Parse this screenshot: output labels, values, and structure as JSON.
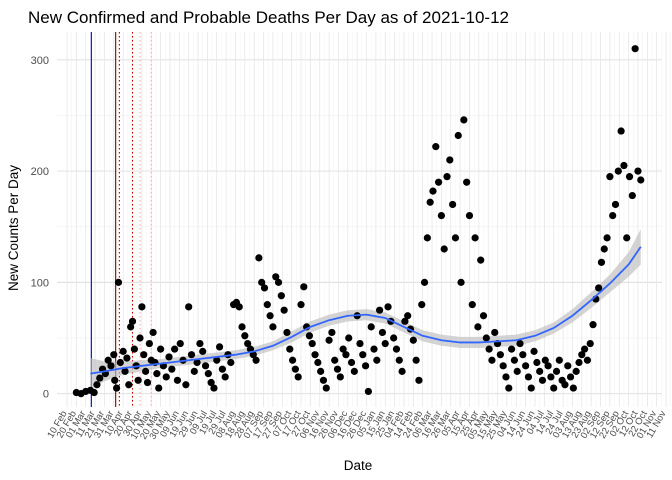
{
  "chart_data": {
    "type": "scatter",
    "title": "New Confirmed and Probable Deaths Per Day as of 2021-10-12",
    "xlabel": "Date",
    "ylabel": "New Counts Per Day",
    "ylim": [
      -12,
      325
    ],
    "y_ticks": [
      0,
      100,
      200,
      300
    ],
    "x_tick_labels": [
      "10 Feb",
      "20 Feb",
      "01 Mar",
      "11 Mar",
      "21 Mar",
      "31 Mar",
      "10 Apr",
      "20 Apr",
      "30 Apr",
      "10 May",
      "20 May",
      "30 May",
      "09 Jun",
      "19 Jun",
      "29 Jun",
      "09 Jul",
      "19 Jul",
      "29 Jul",
      "08 Aug",
      "18 Aug",
      "28 Aug",
      "07 Sep",
      "17 Sep",
      "27 Sep",
      "07 Oct",
      "17 Oct",
      "27 Oct",
      "06 Nov",
      "16 Nov",
      "26 Nov",
      "06 Dec",
      "16 Dec",
      "26 Dec",
      "05 Jan",
      "15 Jan",
      "25 Jan",
      "04 Feb",
      "14 Feb",
      "24 Feb",
      "06 Mar",
      "16 Mar",
      "26 Mar",
      "05 Apr",
      "15 Apr",
      "25 Apr",
      "05 May",
      "15 May",
      "25 May",
      "04 Jun",
      "14 Jun",
      "24 Jun",
      "04 Jul",
      "14 Jul",
      "24 Jul",
      "03 Aug",
      "13 Aug",
      "23 Aug",
      "02 Sep",
      "12 Sep",
      "22 Sep",
      "02 Oct",
      "12 Oct",
      "22 Oct",
      "01 Nov",
      "11 Nov"
    ],
    "grid": true,
    "reference_lines": [
      {
        "x_index": 2.6,
        "color": "#0000cc",
        "style": "solid"
      },
      {
        "x_index": 5.2,
        "color": "#8b0000",
        "style": "solid"
      },
      {
        "x_index": 5.6,
        "color": "#cc0000",
        "style": "dotted"
      },
      {
        "x_index": 7.0,
        "color": "#cc0000",
        "style": "dotted"
      },
      {
        "x_index": 7.8,
        "color": "#ffaaaa",
        "style": "dotted"
      },
      {
        "x_index": 9.0,
        "color": "#ffaaaa",
        "style": "dotted"
      }
    ],
    "smooth": {
      "color": "#3366ff",
      "band_color": "#bdbdbd",
      "x_index": [
        2.5,
        4,
        6,
        8,
        10,
        12,
        14,
        16,
        18,
        20,
        22,
        24,
        26,
        28,
        30,
        32,
        34,
        36,
        38,
        40,
        42,
        44,
        46,
        48,
        50,
        52,
        54,
        56,
        58,
        60,
        61.3
      ],
      "y": [
        18,
        20,
        23,
        25,
        27,
        29,
        31,
        33,
        35,
        38,
        43,
        51,
        60,
        66,
        70,
        71,
        68,
        60,
        52,
        48,
        46,
        46,
        47,
        48,
        52,
        59,
        70,
        84,
        99,
        116,
        132
      ],
      "se": [
        14,
        9,
        6,
        5,
        4,
        4,
        4,
        4,
        4,
        4,
        4,
        5,
        5,
        5,
        5,
        5,
        5,
        5,
        5,
        5,
        5,
        5,
        5,
        5,
        5,
        5,
        6,
        7,
        8,
        11,
        16
      ]
    },
    "points": [
      [
        1.0,
        1
      ],
      [
        1.5,
        0
      ],
      [
        2.0,
        2
      ],
      [
        2.5,
        3
      ],
      [
        2.9,
        1
      ],
      [
        3.2,
        8
      ],
      [
        3.5,
        14
      ],
      [
        3.8,
        22
      ],
      [
        4.1,
        18
      ],
      [
        4.4,
        30
      ],
      [
        4.7,
        25
      ],
      [
        5.0,
        35
      ],
      [
        5.1,
        12
      ],
      [
        5.3,
        5
      ],
      [
        5.5,
        100
      ],
      [
        5.7,
        28
      ],
      [
        6.0,
        38
      ],
      [
        6.2,
        20
      ],
      [
        6.4,
        32
      ],
      [
        6.6,
        8
      ],
      [
        6.8,
        60
      ],
      [
        7.0,
        65
      ],
      [
        7.2,
        40
      ],
      [
        7.4,
        25
      ],
      [
        7.6,
        12
      ],
      [
        7.8,
        50
      ],
      [
        8.0,
        78
      ],
      [
        8.2,
        35
      ],
      [
        8.4,
        20
      ],
      [
        8.6,
        10
      ],
      [
        8.8,
        45
      ],
      [
        9.0,
        30
      ],
      [
        9.2,
        55
      ],
      [
        9.4,
        28
      ],
      [
        9.6,
        18
      ],
      [
        9.8,
        5
      ],
      [
        10.0,
        40
      ],
      [
        10.3,
        25
      ],
      [
        10.6,
        15
      ],
      [
        10.9,
        33
      ],
      [
        11.2,
        22
      ],
      [
        11.5,
        40
      ],
      [
        11.8,
        12
      ],
      [
        12.1,
        45
      ],
      [
        12.4,
        30
      ],
      [
        12.7,
        8
      ],
      [
        13.0,
        78
      ],
      [
        13.3,
        35
      ],
      [
        13.6,
        20
      ],
      [
        13.9,
        28
      ],
      [
        14.2,
        45
      ],
      [
        14.5,
        38
      ],
      [
        14.8,
        25
      ],
      [
        15.1,
        18
      ],
      [
        15.4,
        10
      ],
      [
        15.7,
        5
      ],
      [
        16.0,
        30
      ],
      [
        16.3,
        42
      ],
      [
        16.6,
        22
      ],
      [
        16.9,
        15
      ],
      [
        17.2,
        35
      ],
      [
        17.5,
        28
      ],
      [
        17.8,
        80
      ],
      [
        18.1,
        82
      ],
      [
        18.4,
        78
      ],
      [
        18.7,
        60
      ],
      [
        19.0,
        52
      ],
      [
        19.3,
        45
      ],
      [
        19.6,
        40
      ],
      [
        19.9,
        35
      ],
      [
        20.2,
        30
      ],
      [
        20.5,
        122
      ],
      [
        20.8,
        100
      ],
      [
        21.1,
        95
      ],
      [
        21.4,
        80
      ],
      [
        21.7,
        70
      ],
      [
        22.0,
        60
      ],
      [
        22.3,
        105
      ],
      [
        22.6,
        100
      ],
      [
        22.9,
        88
      ],
      [
        23.2,
        75
      ],
      [
        23.5,
        55
      ],
      [
        23.8,
        40
      ],
      [
        24.1,
        30
      ],
      [
        24.4,
        22
      ],
      [
        24.7,
        15
      ],
      [
        25.0,
        80
      ],
      [
        25.3,
        96
      ],
      [
        25.6,
        60
      ],
      [
        25.9,
        52
      ],
      [
        26.2,
        45
      ],
      [
        26.5,
        35
      ],
      [
        26.8,
        28
      ],
      [
        27.1,
        20
      ],
      [
        27.4,
        12
      ],
      [
        27.7,
        5
      ],
      [
        28.0,
        48
      ],
      [
        28.3,
        55
      ],
      [
        28.6,
        30
      ],
      [
        28.9,
        22
      ],
      [
        29.2,
        15
      ],
      [
        29.5,
        40
      ],
      [
        29.8,
        35
      ],
      [
        30.1,
        50
      ],
      [
        30.4,
        28
      ],
      [
        30.7,
        20
      ],
      [
        31.0,
        70
      ],
      [
        31.3,
        45
      ],
      [
        31.6,
        35
      ],
      [
        31.9,
        25
      ],
      [
        32.2,
        2
      ],
      [
        32.5,
        60
      ],
      [
        32.8,
        40
      ],
      [
        33.1,
        30
      ],
      [
        33.4,
        75
      ],
      [
        33.7,
        55
      ],
      [
        34.0,
        45
      ],
      [
        34.3,
        78
      ],
      [
        34.6,
        65
      ],
      [
        34.9,
        50
      ],
      [
        35.2,
        40
      ],
      [
        35.5,
        30
      ],
      [
        35.8,
        20
      ],
      [
        36.1,
        65
      ],
      [
        36.4,
        70
      ],
      [
        36.7,
        58
      ],
      [
        37.0,
        48
      ],
      [
        37.3,
        30
      ],
      [
        37.6,
        12
      ],
      [
        37.9,
        80
      ],
      [
        38.2,
        100
      ],
      [
        38.5,
        140
      ],
      [
        38.8,
        172
      ],
      [
        39.1,
        182
      ],
      [
        39.4,
        222
      ],
      [
        39.7,
        190
      ],
      [
        40.0,
        160
      ],
      [
        40.3,
        130
      ],
      [
        40.6,
        195
      ],
      [
        40.9,
        210
      ],
      [
        41.2,
        170
      ],
      [
        41.5,
        140
      ],
      [
        41.8,
        232
      ],
      [
        42.1,
        100
      ],
      [
        42.4,
        246
      ],
      [
        42.7,
        190
      ],
      [
        43.0,
        160
      ],
      [
        43.3,
        80
      ],
      [
        43.6,
        140
      ],
      [
        43.9,
        60
      ],
      [
        44.2,
        120
      ],
      [
        44.5,
        70
      ],
      [
        44.8,
        50
      ],
      [
        45.1,
        40
      ],
      [
        45.4,
        30
      ],
      [
        45.7,
        55
      ],
      [
        46.0,
        45
      ],
      [
        46.3,
        35
      ],
      [
        46.6,
        25
      ],
      [
        46.9,
        15
      ],
      [
        47.2,
        5
      ],
      [
        47.5,
        40
      ],
      [
        47.8,
        30
      ],
      [
        48.1,
        20
      ],
      [
        48.4,
        45
      ],
      [
        48.7,
        35
      ],
      [
        49.0,
        25
      ],
      [
        49.3,
        15
      ],
      [
        49.6,
        5
      ],
      [
        49.9,
        38
      ],
      [
        50.2,
        28
      ],
      [
        50.5,
        20
      ],
      [
        50.8,
        12
      ],
      [
        51.1,
        30
      ],
      [
        51.4,
        25
      ],
      [
        51.7,
        15
      ],
      [
        52.0,
        5
      ],
      [
        52.3,
        20
      ],
      [
        52.6,
        30
      ],
      [
        52.9,
        12
      ],
      [
        53.2,
        8
      ],
      [
        53.5,
        25
      ],
      [
        53.8,
        15
      ],
      [
        54.1,
        5
      ],
      [
        54.4,
        20
      ],
      [
        54.7,
        28
      ],
      [
        55.0,
        35
      ],
      [
        55.3,
        40
      ],
      [
        55.6,
        30
      ],
      [
        55.9,
        45
      ],
      [
        56.2,
        62
      ],
      [
        56.5,
        85
      ],
      [
        56.8,
        95
      ],
      [
        57.1,
        118
      ],
      [
        57.4,
        130
      ],
      [
        57.7,
        140
      ],
      [
        58.0,
        195
      ],
      [
        58.3,
        160
      ],
      [
        58.6,
        170
      ],
      [
        58.9,
        200
      ],
      [
        59.2,
        236
      ],
      [
        59.5,
        205
      ],
      [
        59.8,
        140
      ],
      [
        60.1,
        195
      ],
      [
        60.4,
        178
      ],
      [
        60.7,
        310
      ],
      [
        61.0,
        200
      ],
      [
        61.3,
        192
      ]
    ]
  }
}
